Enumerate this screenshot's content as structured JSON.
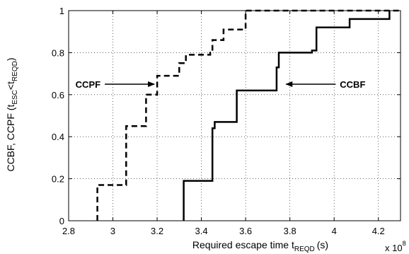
{
  "chart_data": {
    "type": "line",
    "xlabel": "Required escape time t",
    "xlabel_sub": "REQD",
    "xlabel_unit": "(s)",
    "x_multiplier": "x 10",
    "x_multiplier_exp": "8",
    "ylabel_main": "CCBF, CCPF (t",
    "ylabel_sub1": "ESC",
    "ylabel_mid": "<t",
    "ylabel_sub2": "REQD",
    "ylabel_end": ")",
    "xlim": [
      2.8,
      4.3
    ],
    "ylim": [
      0,
      1
    ],
    "x_ticks": [
      "2.8",
      "3",
      "3.2",
      "3.4",
      "3.6",
      "3.8",
      "4",
      "4.2"
    ],
    "y_ticks": [
      "0",
      "0.2",
      "0.4",
      "0.6",
      "0.8",
      "1"
    ],
    "grid": true,
    "series": [
      {
        "name": "CCPF",
        "style": "dashed",
        "points": [
          [
            2.93,
            0
          ],
          [
            2.93,
            0.17
          ],
          [
            3.06,
            0.17
          ],
          [
            3.06,
            0.45
          ],
          [
            3.15,
            0.45
          ],
          [
            3.15,
            0.6
          ],
          [
            3.2,
            0.6
          ],
          [
            3.2,
            0.69
          ],
          [
            3.3,
            0.69
          ],
          [
            3.3,
            0.75
          ],
          [
            3.33,
            0.75
          ],
          [
            3.33,
            0.79
          ],
          [
            3.44,
            0.79
          ],
          [
            3.44,
            0.8
          ],
          [
            3.45,
            0.8
          ],
          [
            3.45,
            0.86
          ],
          [
            3.5,
            0.86
          ],
          [
            3.5,
            0.91
          ],
          [
            3.6,
            0.91
          ],
          [
            3.6,
            1.0
          ],
          [
            4.3,
            1.0
          ]
        ]
      },
      {
        "name": "CCBF",
        "style": "solid",
        "points": [
          [
            3.32,
            0
          ],
          [
            3.32,
            0.19
          ],
          [
            3.45,
            0.19
          ],
          [
            3.45,
            0.44
          ],
          [
            3.46,
            0.44
          ],
          [
            3.46,
            0.47
          ],
          [
            3.56,
            0.47
          ],
          [
            3.56,
            0.62
          ],
          [
            3.74,
            0.62
          ],
          [
            3.74,
            0.73
          ],
          [
            3.75,
            0.73
          ],
          [
            3.75,
            0.8
          ],
          [
            3.9,
            0.8
          ],
          [
            3.9,
            0.81
          ],
          [
            3.92,
            0.81
          ],
          [
            3.92,
            0.92
          ],
          [
            4.07,
            0.92
          ],
          [
            4.07,
            0.96
          ],
          [
            4.25,
            0.96
          ],
          [
            4.25,
            1.0
          ]
        ]
      }
    ],
    "annotations": [
      {
        "text": "CCPF",
        "arrow_to": [
          3.2,
          0.65
        ],
        "side": "left"
      },
      {
        "text": "CCBF",
        "arrow_to": [
          3.77,
          0.65
        ],
        "side": "right"
      }
    ]
  }
}
